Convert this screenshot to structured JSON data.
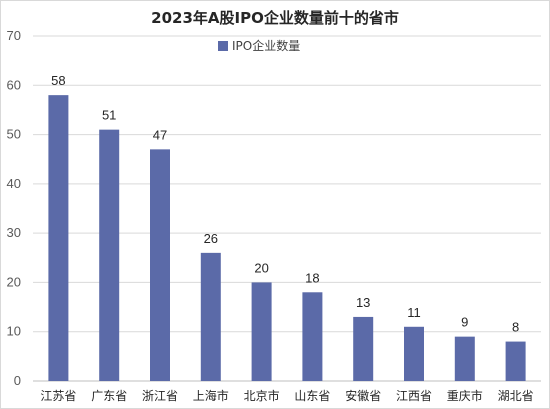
{
  "chart_data": {
    "type": "bar",
    "title": "2023年A股IPO企业数量前十的省市",
    "xlabel": "",
    "ylabel": "",
    "ylim": [
      0,
      70
    ],
    "yticks": [
      0,
      10,
      20,
      30,
      40,
      50,
      60,
      70
    ],
    "grid": true,
    "legend_position": "top",
    "categories": [
      "江苏省",
      "广东省",
      "浙江省",
      "上海市",
      "北京市",
      "山东省",
      "安徽省",
      "江西省",
      "重庆市",
      "湖北省"
    ],
    "series": [
      {
        "name": "IPO企业数量",
        "color": "#5b6aa8",
        "values": [
          58,
          51,
          47,
          26,
          20,
          18,
          13,
          11,
          9,
          8
        ]
      }
    ]
  }
}
